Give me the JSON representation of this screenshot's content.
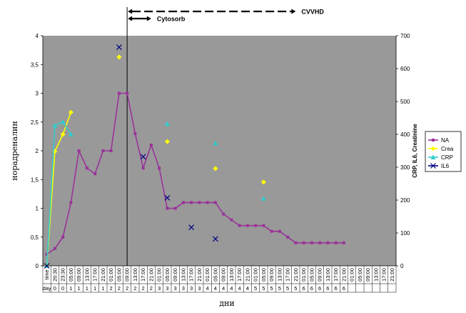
{
  "chart_data": {
    "type": "line",
    "ylabel": "норадреналин",
    "xlabel": "дни",
    "y2label": "CRP, IL6, Creatinine",
    "ylim": [
      0,
      4
    ],
    "y2lim": [
      0,
      700
    ],
    "yticks": [
      "0",
      "0,5",
      "1",
      "1,5",
      "2",
      "2,5",
      "3",
      "3,5",
      "4"
    ],
    "y2ticks": [
      "0",
      "100",
      "200",
      "300",
      "400",
      "500",
      "600",
      "700"
    ],
    "grid": false,
    "legend_position": "right",
    "annotations": [
      {
        "label": "CVVHD",
        "from_index": 10,
        "to_index": 31,
        "style": "dashed"
      },
      {
        "label": "Cytosorb",
        "from_index": 10,
        "to_index": 13,
        "style": "solid"
      }
    ],
    "x_time": [
      "time",
      "20:30",
      "23:30",
      "05:00",
      "09:00",
      "13:00",
      "17:00",
      "21:00",
      "01:00",
      "05:00",
      "09:00",
      "13:00",
      "17:00",
      "21:00",
      "01:00",
      "05:00",
      "09:00",
      "13:00",
      "17:00",
      "21:00",
      "01:00",
      "05:00",
      "09:00",
      "13:00",
      "17:00",
      "21:00",
      "01:00",
      "05:00",
      "09:00",
      "13:00",
      "17:00",
      "21:00",
      "01:00",
      "05:00",
      "09:00",
      "13:00",
      "17:00",
      "21:00",
      "01:00",
      "05:00",
      "09:00",
      "13:00",
      "17:00",
      "21:00"
    ],
    "x_day": [
      "day",
      "0",
      "0",
      "1",
      "1",
      "1",
      "1",
      "1",
      "2",
      "2",
      "2",
      "2",
      "2",
      "2",
      "3",
      "3",
      "3",
      "3",
      "3",
      "3",
      "4",
      "4",
      "4",
      "4",
      "4",
      "4",
      "5",
      "5",
      "5",
      "5",
      "5",
      "5",
      "6",
      "6",
      "6",
      "6",
      "6",
      "6",
      "",
      "",
      "",
      "",
      "",
      ""
    ],
    "series": [
      {
        "name": "NA",
        "axis": "left",
        "color": "#993399",
        "marker": "square",
        "values": [
          0.2,
          0.3,
          0.5,
          1.1,
          2.0,
          1.7,
          1.6,
          2.0,
          2.0,
          3.0,
          3.0,
          2.3,
          1.7,
          2.1,
          1.7,
          1.0,
          1.0,
          1.1,
          1.1,
          1.1,
          1.1,
          1.1,
          0.9,
          0.8,
          0.7,
          0.7,
          0.7,
          0.7,
          0.6,
          0.6,
          0.5,
          0.4,
          0.4,
          0.4,
          0.4,
          0.4,
          0.4,
          0.4
        ]
      },
      {
        "name": "Crea",
        "axis": "right",
        "color": "#ffff00",
        "marker": "diamond",
        "points": [
          [
            0,
            0
          ],
          [
            1,
            348
          ],
          [
            2,
            400
          ],
          [
            3,
            467
          ],
          [
            9,
            635
          ],
          [
            15,
            378
          ],
          [
            21,
            296
          ],
          [
            27,
            255
          ]
        ]
      },
      {
        "name": "CRP",
        "axis": "right",
        "color": "#33cccc",
        "marker": "triangle",
        "points": [
          [
            0,
            0
          ],
          [
            1,
            427
          ],
          [
            2,
            438
          ],
          [
            3,
            400
          ],
          [
            15,
            432
          ],
          [
            21,
            373
          ],
          [
            27,
            205
          ]
        ]
      },
      {
        "name": "IL6",
        "axis": "right",
        "color": "#000080",
        "marker": "x",
        "points": [
          [
            0,
            0
          ],
          [
            9,
            665
          ],
          [
            12,
            332
          ],
          [
            15,
            207
          ],
          [
            18,
            117
          ],
          [
            21,
            82
          ]
        ]
      }
    ]
  }
}
